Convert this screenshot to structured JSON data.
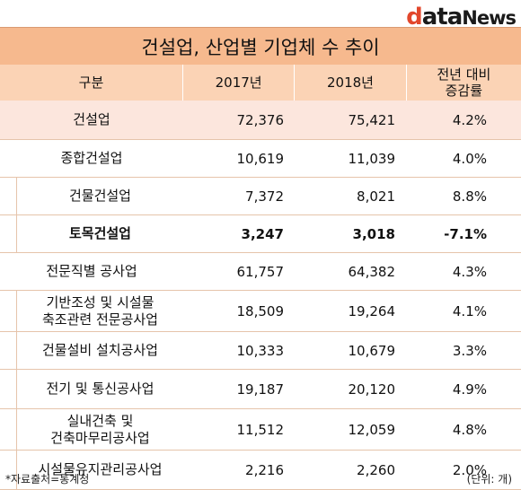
{
  "logo": {
    "part1": "d",
    "part2": "ata",
    "part3": "News"
  },
  "title": "건설업, 산업별 기업체 수 추이",
  "headers": {
    "category": "구분",
    "y2017": "2017년",
    "y2018": "2018년",
    "change_line1": "전년 대비",
    "change_line2": "증감률"
  },
  "rows": [
    {
      "name": [
        "건설업"
      ],
      "y2017": "72,376",
      "y2018": "75,421",
      "change": "4.2%"
    },
    {
      "name": [
        "종합건설업"
      ],
      "y2017": "10,619",
      "y2018": "11,039",
      "change": "4.0%"
    },
    {
      "name": [
        "건물건설업"
      ],
      "y2017": "7,372",
      "y2018": "8,021",
      "change": "8.8%"
    },
    {
      "name": [
        "토목건설업"
      ],
      "y2017": "3,247",
      "y2018": "3,018",
      "change": "-7.1%"
    },
    {
      "name": [
        "전문직별 공사업"
      ],
      "y2017": "61,757",
      "y2018": "64,382",
      "change": "4.3%"
    },
    {
      "name": [
        "기반조성 및 시설물",
        "축조관련 전문공사업"
      ],
      "y2017": "18,509",
      "y2018": "19,264",
      "change": "4.1%"
    },
    {
      "name": [
        "건물설비 설치공사업"
      ],
      "y2017": "10,333",
      "y2018": "10,679",
      "change": "3.3%"
    },
    {
      "name": [
        "전기 및 통신공사업"
      ],
      "y2017": "19,187",
      "y2018": "20,120",
      "change": "4.9%"
    },
    {
      "name": [
        "실내건축 및",
        "건축마무리공사업"
      ],
      "y2017": "11,512",
      "y2018": "12,059",
      "change": "4.8%"
    },
    {
      "name": [
        "시설물유지관리공사업"
      ],
      "y2017": "2,216",
      "y2018": "2,260",
      "change": "2.0%"
    }
  ],
  "footer": {
    "source": "*자료출처=통계청",
    "unit": "(단위: 개)"
  }
}
